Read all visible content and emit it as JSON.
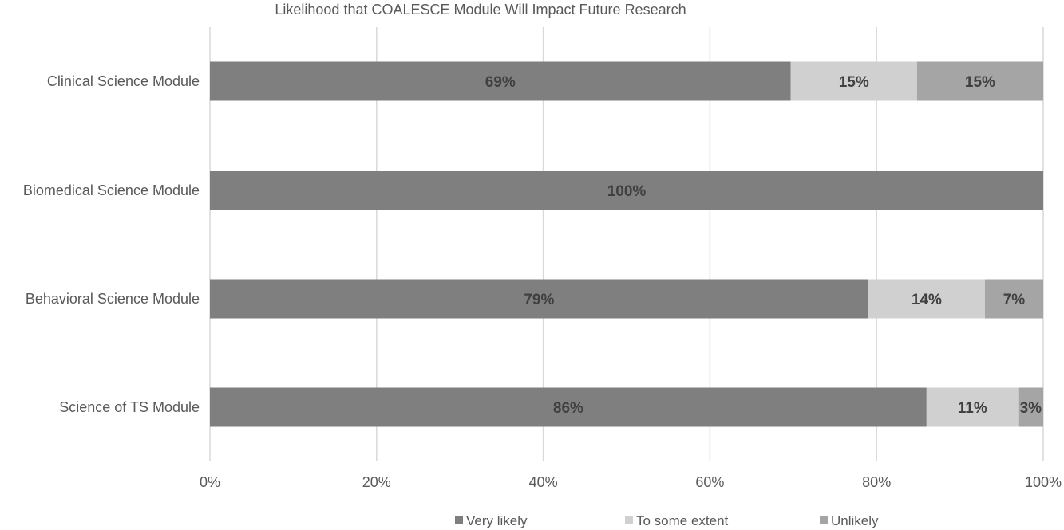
{
  "chart_data": {
    "type": "bar",
    "orientation": "horizontal",
    "stacked": "percent",
    "title": "Likelihood that COALESCE Module Will Impact Future Research",
    "categories": [
      "Clinical Science Module",
      "Biomedical Science Module",
      "Behavioral Science Module",
      "Science of TS Module"
    ],
    "series": [
      {
        "name": "Very likely",
        "color": "#7f7f7f",
        "values": [
          69,
          100,
          79,
          86
        ],
        "labels": [
          "69%",
          "100%",
          "79%",
          "86%"
        ]
      },
      {
        "name": "To some extent",
        "color": "#d0d0d0",
        "values": [
          15,
          0,
          14,
          11
        ],
        "labels": [
          "15%",
          "",
          "14%",
          "11%"
        ]
      },
      {
        "name": "Unlikely",
        "color": "#a5a5a5",
        "values": [
          15,
          0,
          7,
          3
        ],
        "labels": [
          "15%",
          "",
          "7%",
          "3%"
        ]
      }
    ],
    "xlim": [
      0,
      100
    ],
    "xticks": [
      "0%",
      "20%",
      "40%",
      "60%",
      "80%",
      "100%"
    ],
    "grid": true,
    "legend_position": "bottom"
  }
}
